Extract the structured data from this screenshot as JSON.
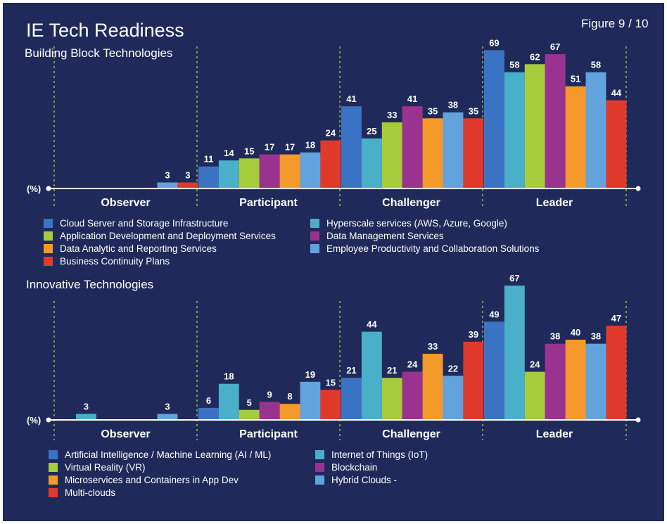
{
  "header": {
    "title": "IE Tech Readiness",
    "figure": "Figure 9 / 10"
  },
  "chart_data": [
    {
      "type": "bar",
      "title": "Building Block Technologies",
      "ylabel": "(%)",
      "categories": [
        "Observer",
        "Participant",
        "Challenger",
        "Leader"
      ],
      "ylim": [
        0,
        70
      ],
      "legend_position": "bottom",
      "series": [
        {
          "name": "Cloud Server and Storage Infrastructure",
          "color": "#3b73c4",
          "values": [
            0,
            11,
            41,
            69
          ]
        },
        {
          "name": "Hyperscale services (AWS, Azure, Google)",
          "color": "#4aafc9",
          "values": [
            0,
            14,
            25,
            58
          ]
        },
        {
          "name": "Application Development and Deployment Services",
          "color": "#a6cc3b",
          "values": [
            0,
            15,
            33,
            62
          ]
        },
        {
          "name": "Data Management Services",
          "color": "#9a338f",
          "values": [
            0,
            17,
            41,
            67
          ]
        },
        {
          "name": "Data Analytic and Reporting Services",
          "color": "#f39a2a",
          "values": [
            0,
            17,
            35,
            51
          ]
        },
        {
          "name": "Employee Productivity and Collaboration Solutions",
          "color": "#62a2dd",
          "values": [
            3,
            18,
            38,
            58
          ]
        },
        {
          "name": "Business Continuity Plans",
          "color": "#e03a2c",
          "values": [
            3,
            24,
            35,
            44
          ]
        }
      ],
      "value_labels": [
        [
          null,
          "11",
          "41",
          "69"
        ],
        [
          null,
          "14",
          "25",
          "58"
        ],
        [
          null,
          "15",
          "33",
          "62"
        ],
        [
          null,
          "17",
          "41",
          "67"
        ],
        [
          null,
          "17",
          "35",
          "51"
        ],
        [
          "3",
          "18",
          "38",
          "58"
        ],
        [
          "3",
          "24",
          "35",
          "44"
        ]
      ]
    },
    {
      "type": "bar",
      "title": "Innovative Technologies",
      "ylabel": "(%)",
      "categories": [
        "Observer",
        "Participant",
        "Challenger",
        "Leader"
      ],
      "ylim": [
        0,
        70
      ],
      "legend_position": "bottom",
      "series": [
        {
          "name": "Artificial Intelligence / Machine Learning (AI / ML)",
          "color": "#3b73c4",
          "values": [
            0,
            6,
            21,
            49
          ]
        },
        {
          "name": "Internet of Things (IoT)",
          "color": "#4aafc9",
          "values": [
            3,
            18,
            44,
            67
          ]
        },
        {
          "name": "Virtual Reality (VR)",
          "color": "#a6cc3b",
          "values": [
            0,
            5,
            21,
            24
          ]
        },
        {
          "name": "Blockchain",
          "color": "#9a338f",
          "values": [
            0,
            9,
            24,
            38
          ]
        },
        {
          "name": "Microservices and Containers in App Dev",
          "color": "#f39a2a",
          "values": [
            0,
            8,
            33,
            40
          ]
        },
        {
          "name": "Hybrid Clouds -",
          "color": "#62a2dd",
          "values": [
            3,
            19,
            22,
            38
          ]
        },
        {
          "name": "Multi-clouds",
          "color": "#e03a2c",
          "values": [
            0,
            15,
            39,
            47
          ]
        }
      ],
      "value_labels": [
        [
          null,
          "6",
          "21",
          "49"
        ],
        [
          "3",
          "18",
          "44",
          "67"
        ],
        [
          null,
          "5",
          "21",
          "24"
        ],
        [
          null,
          "9",
          "24",
          "38"
        ],
        [
          null,
          "8",
          "33",
          "40"
        ],
        [
          "3",
          "19",
          "22",
          "38"
        ],
        [
          null,
          "15",
          "39",
          "47"
        ]
      ]
    }
  ]
}
